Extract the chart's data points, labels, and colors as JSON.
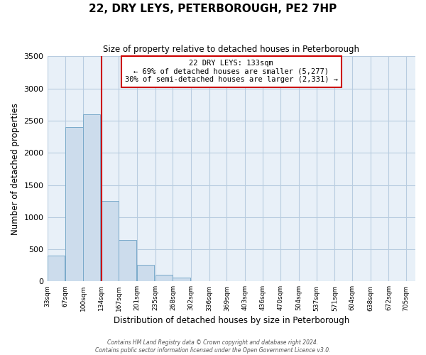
{
  "title": "22, DRY LEYS, PETERBOROUGH, PE2 7HP",
  "subtitle": "Size of property relative to detached houses in Peterborough",
  "xlabel": "Distribution of detached houses by size in Peterborough",
  "ylabel": "Number of detached properties",
  "bar_color": "#ccdcec",
  "bar_edge_color": "#7aaaca",
  "background_color": "#ffffff",
  "plot_bg_color": "#e8f0f8",
  "grid_color": "#b8cce0",
  "marker_color": "#cc0000",
  "annotation_text_line1": "22 DRY LEYS: 133sqm",
  "annotation_text_line2": "← 69% of detached houses are smaller (5,277)",
  "annotation_text_line3": "30% of semi-detached houses are larger (2,331) →",
  "annotation_box_edge_color": "#cc0000",
  "footer_line1": "Contains HM Land Registry data © Crown copyright and database right 2024.",
  "footer_line2": "Contains public sector information licensed under the Open Government Licence v3.0.",
  "bin_left_edges": [
    33,
    67,
    100,
    134,
    167,
    201,
    235,
    268,
    302,
    336,
    369,
    403,
    436,
    470,
    504,
    537,
    571,
    604,
    638,
    672
  ],
  "bin_labels": [
    "33sqm",
    "67sqm",
    "100sqm",
    "134sqm",
    "167sqm",
    "201sqm",
    "235sqm",
    "268sqm",
    "302sqm",
    "336sqm",
    "369sqm",
    "403sqm",
    "436sqm",
    "470sqm",
    "504sqm",
    "537sqm",
    "571sqm",
    "604sqm",
    "638sqm",
    "672sqm",
    "705sqm"
  ],
  "counts": [
    400,
    2400,
    2600,
    1250,
    640,
    260,
    100,
    55,
    0,
    0,
    0,
    0,
    0,
    0,
    0,
    0,
    0,
    0,
    0,
    0
  ],
  "marker_x": 134,
  "ylim": [
    0,
    3500
  ],
  "yticks": [
    0,
    500,
    1000,
    1500,
    2000,
    2500,
    3000,
    3500
  ],
  "xlim_left": 33,
  "xlim_right": 722,
  "bin_width": 33
}
